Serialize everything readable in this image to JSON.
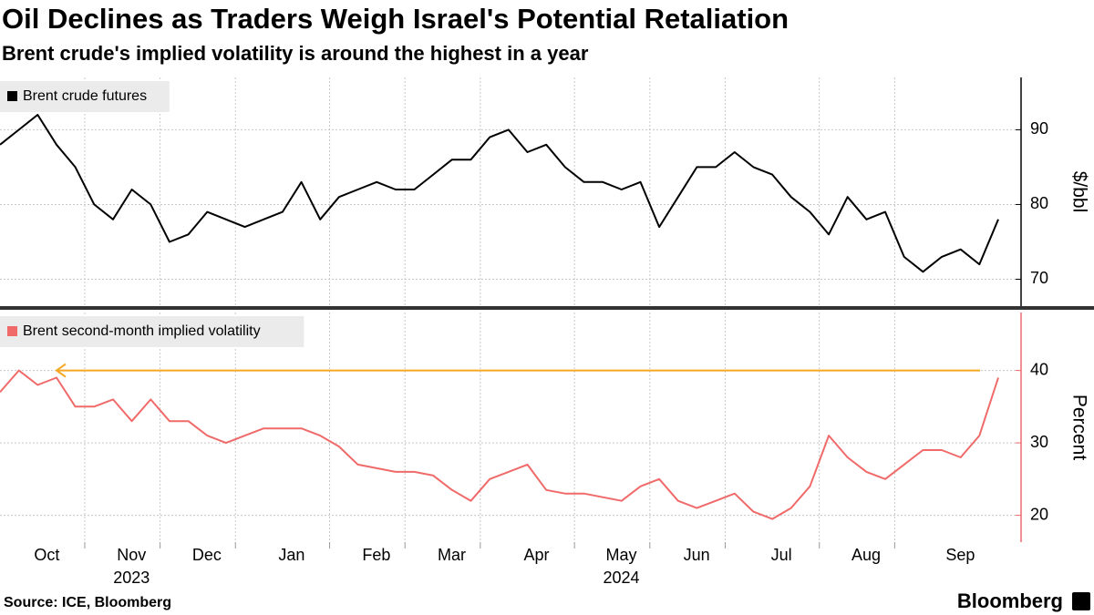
{
  "chart_data": [
    {
      "type": "line",
      "title": "Oil Declines as Traders Weigh Israel's Potential Retaliation",
      "subtitle": "Brent crude's implied volatility is around the highest in a year",
      "series": [
        {
          "name": "Brent crude futures",
          "color": "#000000",
          "values": [
            88,
            90,
            92,
            88,
            85,
            80,
            78,
            82,
            80,
            75,
            76,
            79,
            78,
            77,
            78,
            79,
            83,
            78,
            81,
            82,
            83,
            82,
            82,
            84,
            86,
            86,
            89,
            90,
            87,
            88,
            85,
            83,
            83,
            82,
            83,
            77,
            81,
            85,
            85,
            87,
            85,
            84,
            81,
            79,
            76,
            81,
            78,
            79,
            73,
            71,
            73,
            74,
            72,
            78
          ]
        }
      ],
      "ylim": [
        66.4,
        97
      ],
      "yticks": [
        70,
        80,
        90
      ],
      "ylabel": "$/bbl",
      "grid": true
    },
    {
      "type": "line",
      "series": [
        {
          "name": "Brent second-month implied volatility",
          "color": "#f06a6a",
          "values": [
            37,
            40,
            38,
            39,
            35,
            35,
            36,
            33,
            36,
            33,
            33,
            31,
            30,
            31,
            32,
            32,
            32,
            31,
            29.5,
            27,
            26.5,
            26,
            26,
            25.5,
            23.5,
            22,
            25,
            26,
            27,
            23.5,
            23,
            23,
            22.5,
            22,
            24,
            25,
            22,
            21,
            22,
            23,
            20.5,
            19.5,
            21,
            24,
            31,
            28,
            26,
            25,
            27,
            29,
            29,
            28,
            31,
            39
          ]
        }
      ],
      "reference_line": {
        "value": 40,
        "color": "#f5a623"
      },
      "categories": [
        "Oct",
        null,
        null,
        null,
        null,
        "Nov",
        null,
        null,
        null,
        "Dec",
        null,
        null,
        null,
        "Jan",
        null,
        null,
        null,
        null,
        "Feb",
        null,
        null,
        null,
        "Mar",
        null,
        null,
        null,
        "Apr",
        null,
        null,
        null,
        null,
        "May",
        null,
        null,
        null,
        "Jun",
        null,
        null,
        null,
        "Jul",
        null,
        null,
        null,
        null,
        "Aug",
        null,
        null,
        null,
        "Sep",
        null,
        null,
        null,
        null,
        null
      ],
      "year_labels": [
        null,
        null,
        null,
        null,
        null,
        "2023",
        null,
        null,
        null,
        null,
        null,
        null,
        null,
        null,
        null,
        null,
        null,
        null,
        null,
        null,
        null,
        null,
        null,
        null,
        null,
        null,
        null,
        null,
        null,
        null,
        null,
        "2024",
        null,
        null,
        null,
        null,
        null,
        null,
        null,
        null,
        null,
        null,
        null,
        null,
        null,
        null,
        null,
        null,
        null,
        null,
        null,
        null,
        null,
        null
      ],
      "ylim": [
        16.3,
        48
      ],
      "yticks": [
        20,
        30,
        40
      ],
      "ylabel": "Percent",
      "grid": true
    }
  ],
  "source": "Source: ICE, Bloomberg",
  "logo": "Bloomberg"
}
